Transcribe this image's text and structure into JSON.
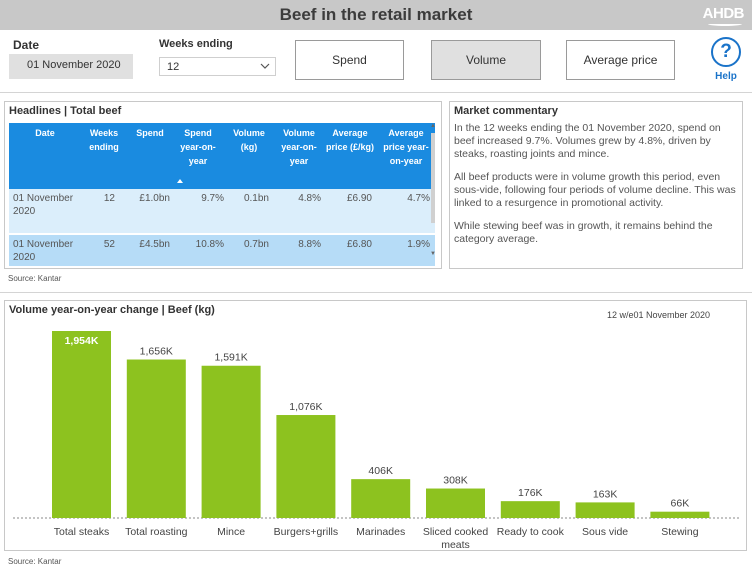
{
  "header": {
    "title": "Beef in the retail market",
    "logo_text": "AHDB"
  },
  "filters": {
    "date_label": "Date",
    "date_value": "01 November 2020",
    "weeks_label": "Weeks ending",
    "weeks_value": "12"
  },
  "measure_buttons": {
    "spend": "Spend",
    "volume": "Volume",
    "average_price": "Average price",
    "selected": "Volume"
  },
  "help": {
    "icon_glyph": "?",
    "label": "Help"
  },
  "headlines": {
    "title": "Headlines | Total beef",
    "columns": [
      "Date",
      "Weeks ending",
      "Spend",
      "Spend year-on-year",
      "Volume (kg)",
      "Volume year-on-year",
      "Average price (£/kg)",
      "Average price year-on-year"
    ],
    "rows": [
      [
        "01 November 2020",
        "12",
        "£1.0bn",
        "9.7%",
        "0.1bn",
        "4.8%",
        "£6.90",
        "4.7%"
      ],
      [
        "01 November 2020",
        "52",
        "£4.5bn",
        "10.8%",
        "0.7bn",
        "8.8%",
        "£6.80",
        "1.9%"
      ]
    ],
    "source": "Source: Kantar"
  },
  "commentary": {
    "title": "Market commentary",
    "paragraphs": [
      "In the 12 weeks ending the 01 November 2020, spend on beef increased 9.7%. Volumes grew by 4.8%, driven by steaks, roasting joints and mince.",
      "All beef products were in volume growth this period, even sous-vide, following four periods of volume decline. This was linked to a resurgence in promotional activity.",
      "While stewing beef was in growth, it remains behind the category average."
    ]
  },
  "chart_data": {
    "type": "bar",
    "title": "Volume year-on-year change | Beef (kg)",
    "period": "12  w/e01 November 2020",
    "categories": [
      "Total steaks",
      "Total roasting",
      "Mince",
      "Burgers+grills",
      "Marinades",
      "Sliced cooked meats",
      "Ready to cook",
      "Sous vide",
      "Stewing"
    ],
    "values": [
      1954,
      1656,
      1591,
      1076,
      406,
      308,
      176,
      163,
      66
    ],
    "data_labels": [
      "1,954K",
      "1,656K",
      "1,591K",
      "1,076K",
      "406K",
      "308K",
      "176K",
      "163K",
      "66K"
    ],
    "highlighted_label_index": 0,
    "bar_color": "#8dc21f",
    "ylim": [
      0,
      1954
    ],
    "grid": false,
    "source": "Source: Kantar"
  }
}
